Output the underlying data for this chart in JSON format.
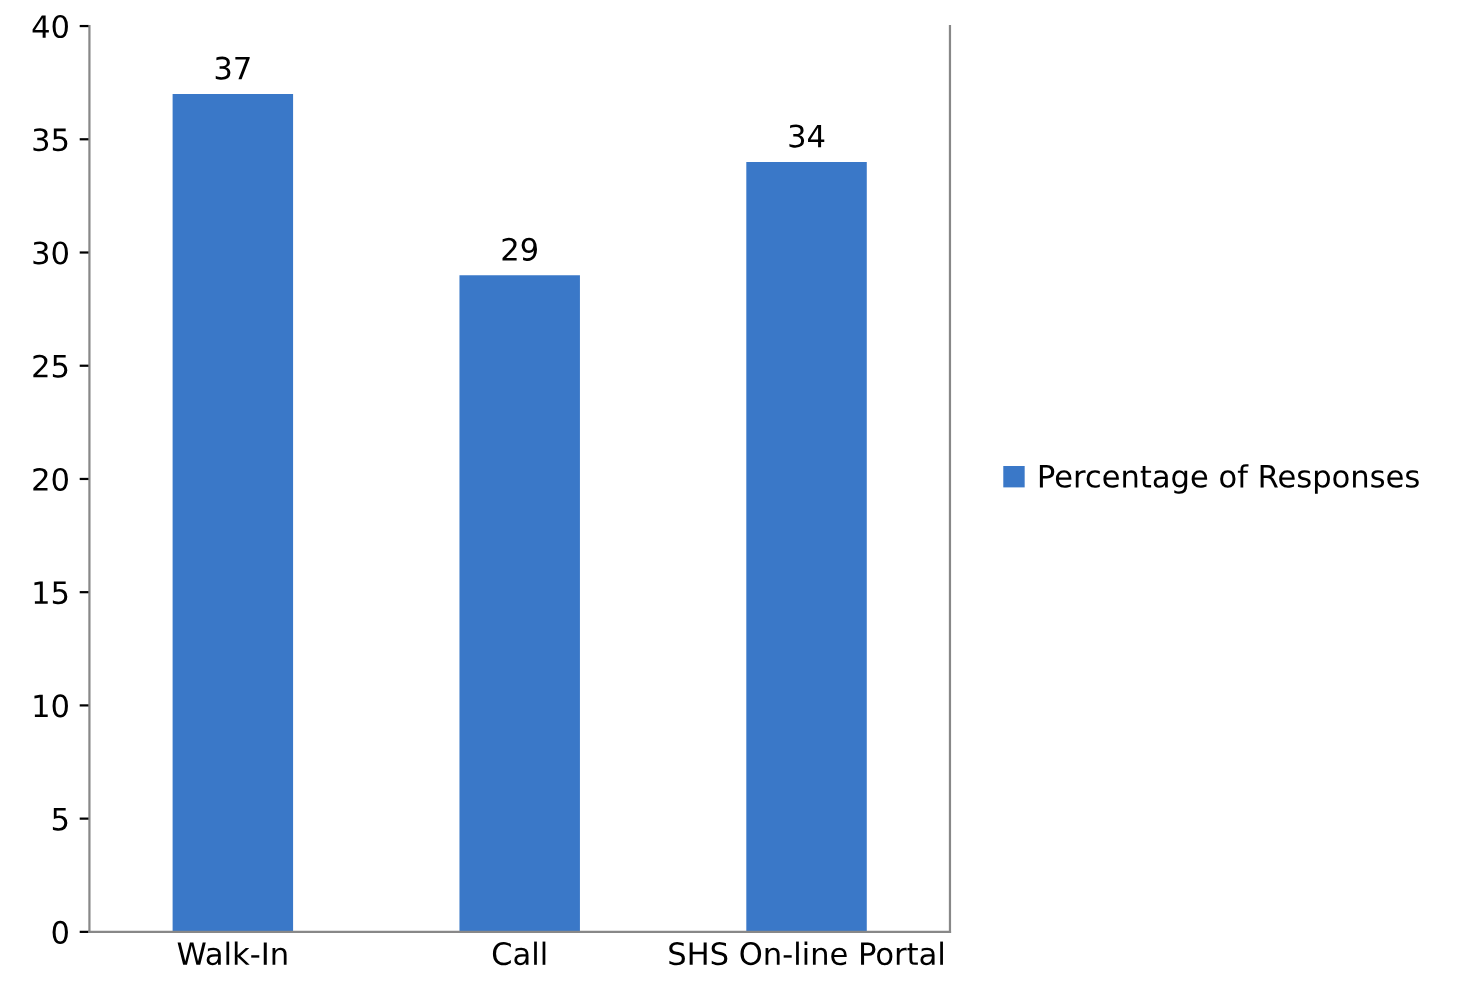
{
  "chart_data": {
    "type": "bar",
    "categories": [
      "Walk-In",
      "Call",
      "SHS On-line Portal"
    ],
    "series": [
      {
        "name": "Percentage of Responses",
        "color": "#3a78c8",
        "values": [
          37,
          29,
          34
        ]
      }
    ],
    "ylim": [
      0,
      40
    ],
    "yticks": [
      0,
      5,
      10,
      15,
      20,
      25,
      30,
      35,
      40
    ],
    "grid": false,
    "legend": "right",
    "data_labels": true
  }
}
